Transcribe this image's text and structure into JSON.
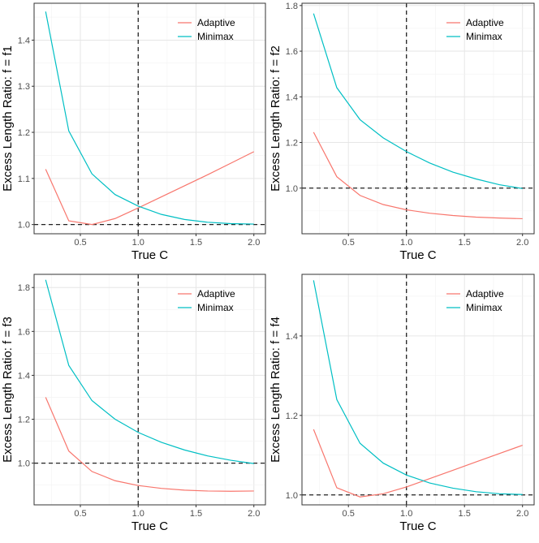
{
  "chart_data": [
    {
      "type": "line",
      "title": "",
      "xlabel": "True C",
      "ylabel": "Excess Length Ratio: f = f1",
      "xlim": [
        0.1,
        2.1
      ],
      "ylim": [
        0.98,
        1.48
      ],
      "xticks": [
        0.5,
        1.0,
        1.5,
        2.0
      ],
      "xtick_labels": [
        "0.5",
        "1.0",
        "1.5",
        "2.0"
      ],
      "yticks": [
        1.0,
        1.1,
        1.2,
        1.3,
        1.4
      ],
      "ytick_labels": [
        "1.0",
        "1.1",
        "1.2",
        "1.3",
        "1.4"
      ],
      "vline": 1.0,
      "hline": 1.0,
      "grid": true,
      "legend": "top-right",
      "x": [
        0.2,
        0.4,
        0.6,
        0.8,
        1.0,
        1.2,
        1.4,
        1.6,
        1.8,
        2.0
      ],
      "series": [
        {
          "name": "Adaptive",
          "color": "#F8766D",
          "values": [
            1.12,
            1.008,
            1.0,
            1.013,
            1.036,
            1.06,
            1.084,
            1.108,
            1.133,
            1.158
          ]
        },
        {
          "name": "Minimax",
          "color": "#00BFC4",
          "values": [
            1.462,
            1.203,
            1.11,
            1.065,
            1.04,
            1.022,
            1.011,
            1.005,
            1.002,
            1.001
          ]
        }
      ]
    },
    {
      "type": "line",
      "title": "",
      "xlabel": "True C",
      "ylabel": "Excess Length Ratio: f = f2",
      "xlim": [
        0.1,
        2.1
      ],
      "ylim": [
        0.8,
        1.81
      ],
      "xticks": [
        0.5,
        1.0,
        1.5,
        2.0
      ],
      "xtick_labels": [
        "0.5",
        "1.0",
        "1.5",
        "2.0"
      ],
      "yticks": [
        1.0,
        1.2,
        1.4,
        1.6,
        1.8
      ],
      "ytick_labels": [
        "1.0",
        "1.2",
        "1.4",
        "1.6",
        "1.8"
      ],
      "vline": 1.0,
      "hline": 1.0,
      "grid": true,
      "legend": "top-right",
      "x": [
        0.2,
        0.4,
        0.6,
        0.8,
        1.0,
        1.2,
        1.4,
        1.6,
        1.8,
        2.0
      ],
      "series": [
        {
          "name": "Adaptive",
          "color": "#F8766D",
          "values": [
            1.245,
            1.05,
            0.968,
            0.928,
            0.905,
            0.89,
            0.88,
            0.873,
            0.869,
            0.866
          ]
        },
        {
          "name": "Minimax",
          "color": "#00BFC4",
          "values": [
            1.765,
            1.44,
            1.3,
            1.22,
            1.16,
            1.11,
            1.07,
            1.04,
            1.015,
            0.998
          ]
        }
      ]
    },
    {
      "type": "line",
      "title": "",
      "xlabel": "True C",
      "ylabel": "Excess Length Ratio: f = f3",
      "xlim": [
        0.1,
        2.1
      ],
      "ylim": [
        0.81,
        1.86
      ],
      "xticks": [
        0.5,
        1.0,
        1.5,
        2.0
      ],
      "xtick_labels": [
        "0.5",
        "1.0",
        "1.5",
        "2.0"
      ],
      "yticks": [
        1.0,
        1.2,
        1.4,
        1.6,
        1.8
      ],
      "ytick_labels": [
        "1.0",
        "1.2",
        "1.4",
        "1.6",
        "1.8"
      ],
      "vline": 1.0,
      "hline": 1.0,
      "grid": true,
      "legend": "top-right",
      "x": [
        0.2,
        0.4,
        0.6,
        0.8,
        1.0,
        1.2,
        1.4,
        1.6,
        1.8,
        2.0
      ],
      "series": [
        {
          "name": "Adaptive",
          "color": "#F8766D",
          "values": [
            1.3,
            1.055,
            0.962,
            0.92,
            0.898,
            0.885,
            0.877,
            0.873,
            0.872,
            0.873
          ]
        },
        {
          "name": "Minimax",
          "color": "#00BFC4",
          "values": [
            1.835,
            1.445,
            1.285,
            1.2,
            1.14,
            1.095,
            1.06,
            1.033,
            1.013,
            0.998
          ]
        }
      ]
    },
    {
      "type": "line",
      "title": "",
      "xlabel": "True C",
      "ylabel": "Excess Length Ratio: f = f4",
      "xlim": [
        0.1,
        2.1
      ],
      "ylim": [
        0.975,
        1.555
      ],
      "xticks": [
        0.5,
        1.0,
        1.5,
        2.0
      ],
      "xtick_labels": [
        "0.5",
        "1.0",
        "1.5",
        "2.0"
      ],
      "yticks": [
        1.0,
        1.2,
        1.4
      ],
      "ytick_labels": [
        "1.0",
        "1.2",
        "1.4"
      ],
      "vline": 1.0,
      "hline": 1.0,
      "grid": true,
      "legend": "top-right",
      "x": [
        0.2,
        0.4,
        0.6,
        0.8,
        1.0,
        1.2,
        1.4,
        1.6,
        1.8,
        2.0
      ],
      "series": [
        {
          "name": "Adaptive",
          "color": "#F8766D",
          "values": [
            1.165,
            1.018,
            0.995,
            1.003,
            1.02,
            1.041,
            1.062,
            1.083,
            1.104,
            1.125
          ]
        },
        {
          "name": "Minimax",
          "color": "#00BFC4",
          "values": [
            1.54,
            1.24,
            1.13,
            1.08,
            1.05,
            1.03,
            1.017,
            1.008,
            1.003,
            1.001
          ]
        }
      ]
    }
  ]
}
